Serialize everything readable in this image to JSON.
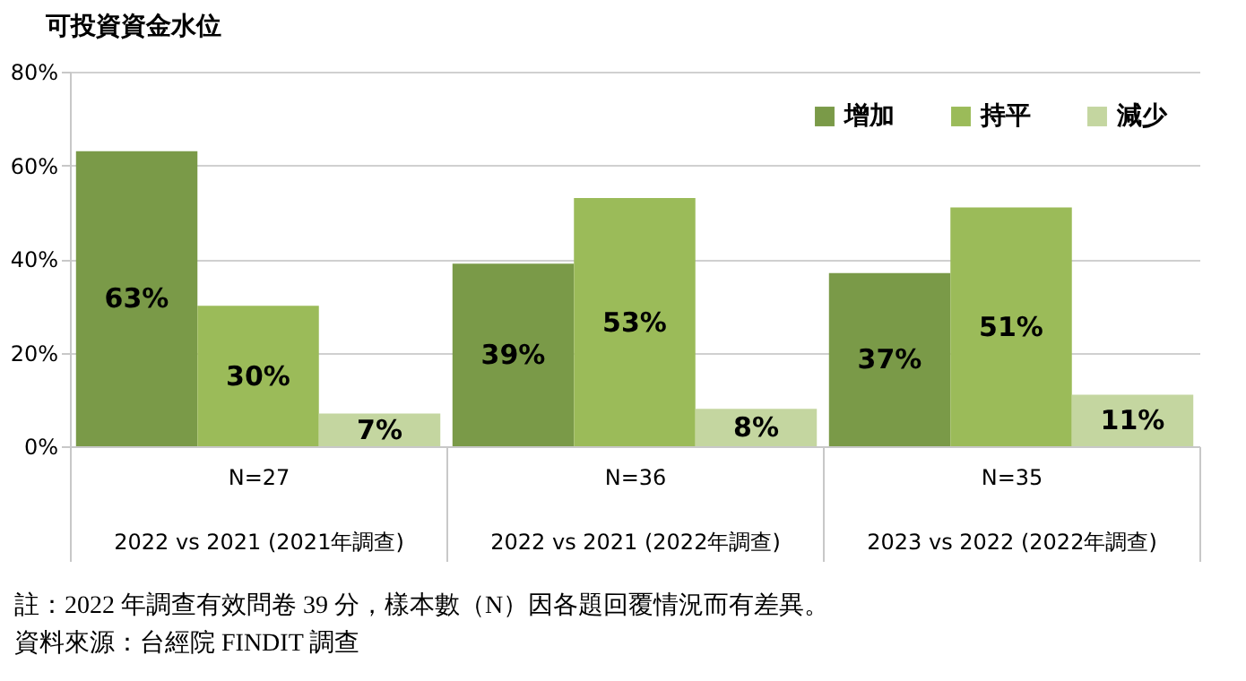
{
  "chart_data": {
    "type": "bar",
    "title": "可投資資金水位",
    "categories": [
      "N=27\n2022 vs 2021 (2021年調查)",
      "N=36\n2022 vs 2021 (2022年調查)",
      "N=35\n2023 vs 2022 (2022年調查)"
    ],
    "series": [
      {
        "name": "增加",
        "color": "#7a9a48",
        "values": [
          63,
          39,
          37
        ],
        "value_labels": [
          "63%",
          "39%",
          "37%"
        ]
      },
      {
        "name": "持平",
        "color": "#9bbb59",
        "values": [
          30,
          53,
          51
        ],
        "value_labels": [
          "30%",
          "53%",
          "51%"
        ]
      },
      {
        "name": "減少",
        "color": "#c4d6a0",
        "values": [
          7,
          8,
          11
        ],
        "value_labels": [
          "7%",
          "8%",
          "11%"
        ]
      }
    ],
    "ylim": [
      0,
      80
    ],
    "yticks": [
      {
        "value": 0,
        "label": "0%"
      },
      {
        "value": 20,
        "label": "20%"
      },
      {
        "value": 40,
        "label": "40%"
      },
      {
        "value": 60,
        "label": "60%"
      },
      {
        "value": 80,
        "label": "80%"
      }
    ],
    "grid": "y",
    "legend": "top right",
    "annotations": [
      "註：2022 年調查有效問卷 39 分，樣本數（N）因各題回覆情況而有差異。",
      "資料來源：台經院 FINDIT 調查"
    ]
  }
}
